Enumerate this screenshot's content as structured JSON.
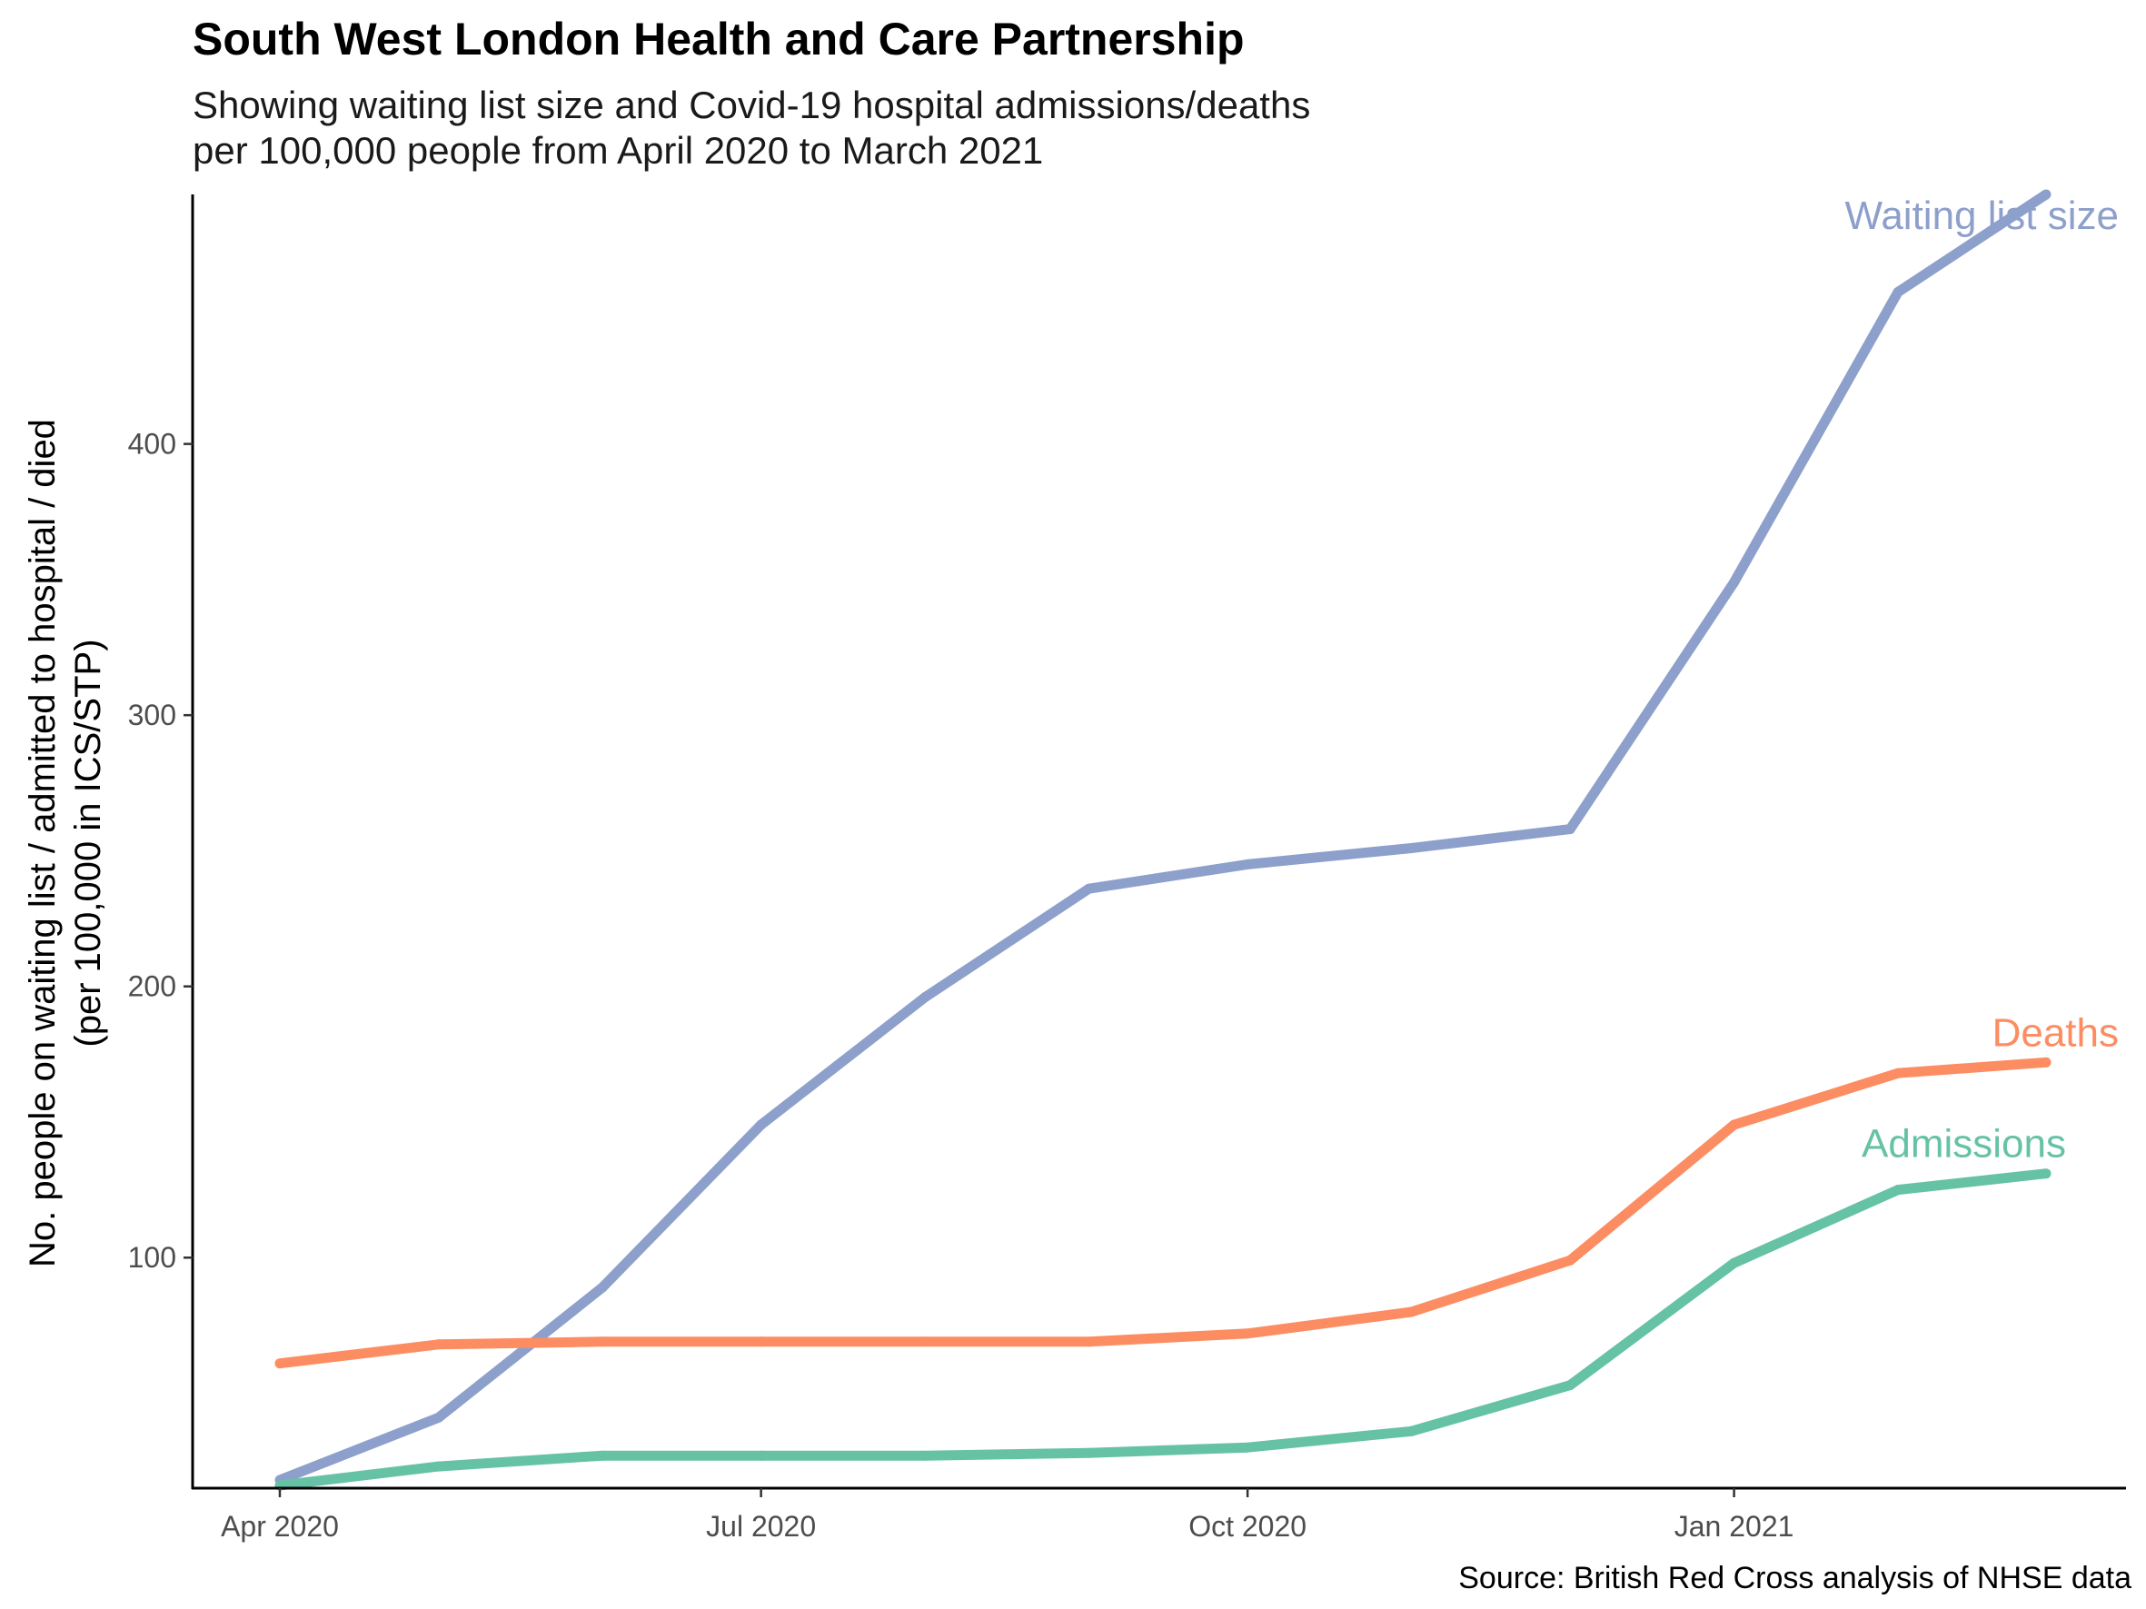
{
  "title": "South West London Health and Care Partnership",
  "subtitle_lines": [
    "Showing waiting list size and Covid-19 hospital admissions/deaths",
    "per 100,000 people from April 2020 to March 2021"
  ],
  "caption": "Source: British Red Cross analysis of NHSE data",
  "chart_data": {
    "type": "line",
    "title": "South West London Health and Care Partnership",
    "ylabel_lines": [
      "No. people on waiting list / admitted to hospital / died",
      "(per 100,000 in ICS/STP)"
    ],
    "xlabel": "",
    "x": [
      "2020-04-01",
      "2020-05-01",
      "2020-06-01",
      "2020-07-01",
      "2020-08-01",
      "2020-09-01",
      "2020-10-01",
      "2020-11-01",
      "2020-12-01",
      "2021-01-01",
      "2021-02-01",
      "2021-03-01"
    ],
    "x_tick_labels": [
      {
        "label": "Apr 2020",
        "date": "2020-04-01"
      },
      {
        "label": "Jul 2020",
        "date": "2020-07-01"
      },
      {
        "label": "Oct 2020",
        "date": "2020-10-01"
      },
      {
        "label": "Jan 2021",
        "date": "2021-01-01"
      }
    ],
    "y_ticks": [
      100,
      200,
      300,
      400
    ],
    "ylim": [
      15,
      492
    ],
    "series": [
      {
        "name": "Waiting list size",
        "color": "#8DA0CB",
        "values": [
          18,
          41,
          89,
          149,
          196,
          236,
          245,
          251,
          258,
          349,
          456,
          492
        ]
      },
      {
        "name": "Deaths",
        "color": "#FC8D62",
        "values": [
          61,
          68,
          69,
          69,
          69,
          69,
          72,
          80,
          99,
          149,
          168,
          172
        ]
      },
      {
        "name": "Admissions",
        "color": "#66C2A5",
        "values": [
          16,
          23,
          27,
          27,
          27,
          28,
          30,
          36,
          53,
          98,
          125,
          131
        ]
      }
    ],
    "grid": false,
    "legend": "none; series labelled directly at line ends"
  }
}
